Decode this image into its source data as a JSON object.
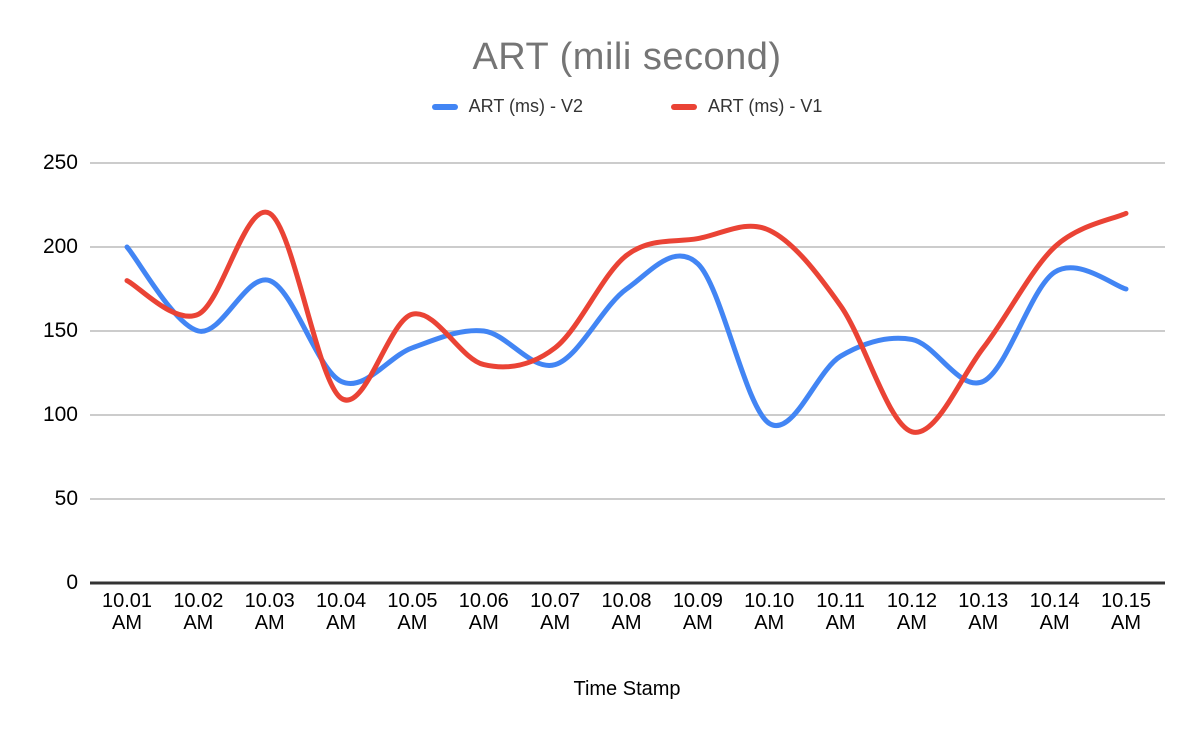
{
  "chart_data": {
    "type": "line",
    "smooth": true,
    "title": "ART (mili second)",
    "xlabel": "Time Stamp",
    "ylabel": "",
    "ylim": [
      0,
      250
    ],
    "yticks": [
      0,
      50,
      100,
      150,
      200,
      250
    ],
    "grid": true,
    "legend_position": "top",
    "categories": [
      "10.01 AM",
      "10.02 AM",
      "10.03 AM",
      "10.04 AM",
      "10.05 AM",
      "10.06 AM",
      "10.07 AM",
      "10.08 AM",
      "10.09 AM",
      "10.10 AM",
      "10.11 AM",
      "10.12 AM",
      "10.13 AM",
      "10.14 AM",
      "10.15 AM"
    ],
    "series": [
      {
        "name": "ART (ms) - V2",
        "color": "#4285F4",
        "values": [
          200,
          150,
          180,
          120,
          140,
          150,
          130,
          175,
          190,
          95,
          135,
          145,
          120,
          185,
          175
        ]
      },
      {
        "name": "ART (ms) - V1",
        "color": "#EA4335",
        "values": [
          180,
          160,
          220,
          110,
          160,
          130,
          140,
          195,
          205,
          210,
          165,
          90,
          140,
          200,
          220
        ]
      }
    ]
  },
  "colors": {
    "title_text": "#757575",
    "axis_text": "#000000",
    "gridline": "#cccccc",
    "baseline": "#333333",
    "background": "#ffffff"
  }
}
